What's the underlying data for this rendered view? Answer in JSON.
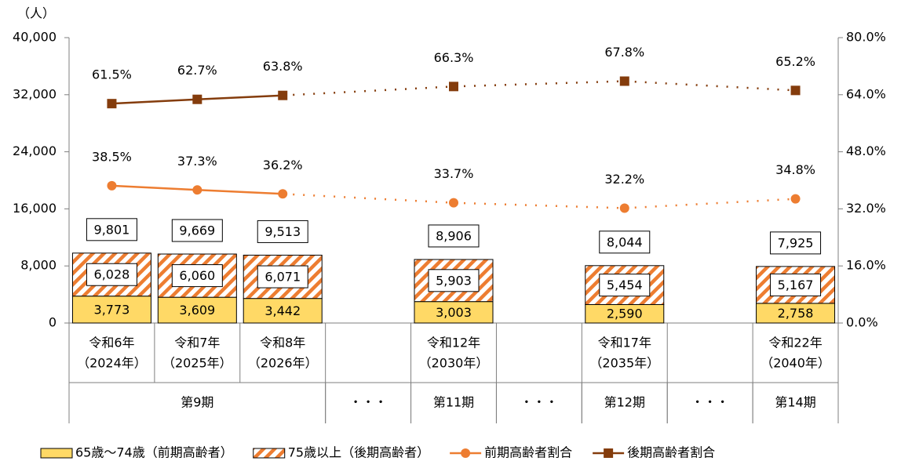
{
  "chart_data": {
    "type": "bar",
    "y_axis_label": "（人）",
    "categories": [
      [
        "令和6年",
        "（2024年）"
      ],
      [
        "令和7年",
        "（2025年）"
      ],
      [
        "令和8年",
        "（2026年）"
      ],
      null,
      [
        "令和12年",
        "（2030年）"
      ],
      null,
      [
        "令和17年",
        "（2035年）"
      ],
      null,
      [
        "令和22年",
        "（2040年）"
      ]
    ],
    "periods": [
      {
        "label": "第9期",
        "span": 3
      },
      {
        "label": "・・・",
        "span": 1
      },
      {
        "label": "第11期",
        "span": 1
      },
      {
        "label": "・・・",
        "span": 1
      },
      {
        "label": "第12期",
        "span": 1
      },
      {
        "label": "・・・",
        "span": 1
      },
      {
        "label": "第14期",
        "span": 1
      }
    ],
    "series": [
      {
        "name": "65歳～74歳（前期高齢者）",
        "color": "#ffd966",
        "stack": true,
        "values": [
          3773,
          3609,
          3442,
          null,
          3003,
          null,
          2590,
          null,
          2758
        ],
        "value_labels": [
          "3,773",
          "3,609",
          "3,442",
          null,
          "3,003",
          null,
          "2,590",
          null,
          "2,758"
        ]
      },
      {
        "name": "75歳以上（後期高齢者）",
        "color": "#ed7d31",
        "stack": true,
        "hatch": true,
        "values": [
          6028,
          6060,
          6071,
          null,
          5903,
          null,
          5454,
          null,
          5167
        ],
        "value_labels": [
          "6,028",
          "6,060",
          "6,071",
          null,
          "5,903",
          null,
          "5,454",
          null,
          "5,167"
        ]
      },
      {
        "name": "前期高齢者割合",
        "color": "#ed7d31",
        "type": "line",
        "marker": "circle",
        "axis": "y2",
        "values": [
          38.5,
          37.3,
          36.2,
          null,
          33.7,
          null,
          32.2,
          null,
          34.8
        ],
        "value_labels": [
          "38.5%",
          "37.3%",
          "36.2%",
          null,
          "33.7%",
          null,
          "32.2%",
          null,
          "34.8%"
        ]
      },
      {
        "name": "後期高齢者割合",
        "color": "#843c0c",
        "type": "line",
        "marker": "square",
        "axis": "y2",
        "values": [
          61.5,
          62.7,
          63.8,
          null,
          66.3,
          null,
          67.8,
          null,
          65.2
        ],
        "value_labels": [
          "61.5%",
          "62.7%",
          "63.8%",
          null,
          "66.3%",
          null,
          "67.8%",
          null,
          "65.2%"
        ]
      }
    ],
    "totals": [
      9801,
      9669,
      9513,
      null,
      8906,
      null,
      8044,
      null,
      7925
    ],
    "total_labels": [
      "9,801",
      "9,669",
      "9,513",
      null,
      "8,906",
      null,
      "8,044",
      null,
      "7,925"
    ],
    "ylim": [
      0,
      40000
    ],
    "yticks": [
      0,
      {
        "value": 8000,
        "label": "8,000"
      },
      {
        "value": 16000,
        "label": "16,000"
      },
      {
        "value": 24000,
        "label": "24,000"
      },
      {
        "value": 32000,
        "label": "32,000"
      },
      {
        "value": 40000,
        "label": "40,000"
      }
    ],
    "y2lim": [
      0,
      80
    ],
    "y2ticks": [
      {
        "value": 0,
        "label": "0.0%"
      },
      {
        "value": 16,
        "label": "16.0%"
      },
      {
        "value": 32,
        "label": "32.0%"
      },
      {
        "value": 48,
        "label": "48.0%"
      },
      {
        "value": 64,
        "label": "64.0%"
      },
      {
        "value": 80,
        "label": "80.0%"
      }
    ],
    "legend": "bottom"
  }
}
